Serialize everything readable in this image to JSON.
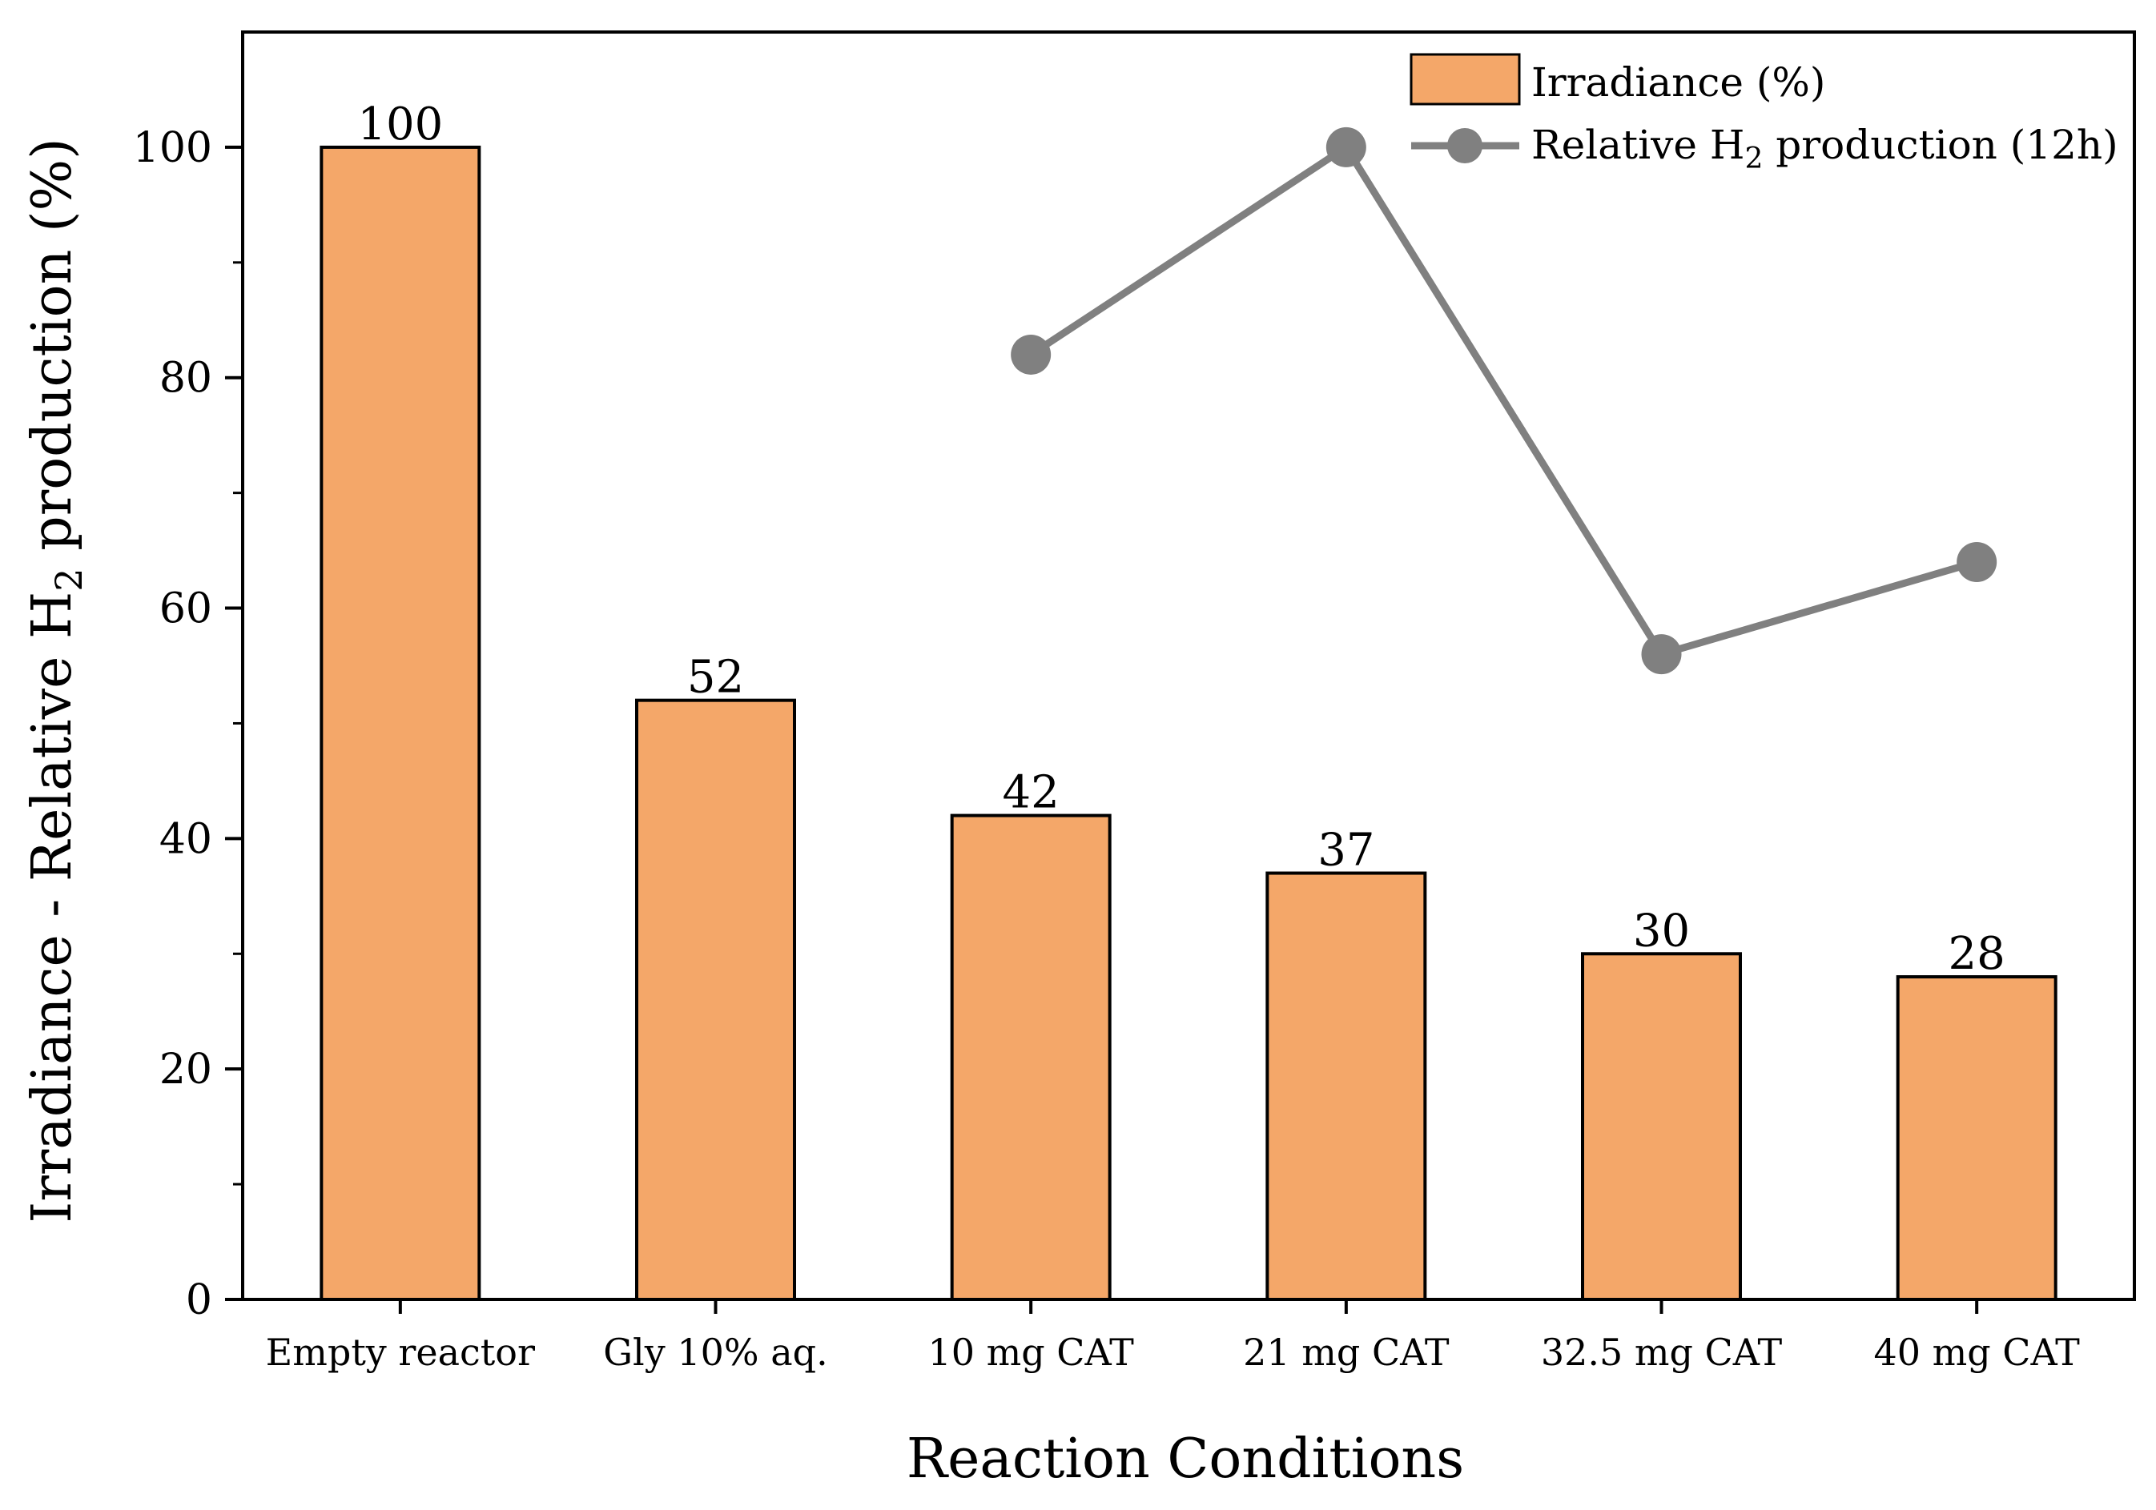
{
  "chart_data": {
    "type": "bar",
    "categories": [
      "Empty reactor",
      "Gly 10% aq.",
      "10 mg CAT",
      "21 mg CAT",
      "32.5 mg CAT",
      "40 mg CAT"
    ],
    "series": [
      {
        "name": "Irradiance (%)",
        "type": "bar",
        "color": "#F4A769",
        "values": [
          100,
          52,
          42,
          37,
          30,
          28
        ],
        "data_labels": [
          "100",
          "52",
          "42",
          "37",
          "30",
          "28"
        ]
      },
      {
        "name": "Relative H2 production (12h)",
        "type": "line",
        "color": "#808080",
        "values": [
          null,
          null,
          82,
          100,
          56,
          64
        ]
      }
    ],
    "xlabel": "Reaction Conditions",
    "ylabel": "Irradiance - Relative H2 production (%)",
    "ylim": [
      0,
      110
    ],
    "yticks": [
      0,
      20,
      40,
      60,
      80,
      100
    ],
    "legend": {
      "position": "top-right",
      "bar_label": "Irradiance (%)",
      "line_label_prefix": "Relative H",
      "line_label_sub": "2",
      "line_label_suffix": " production (12h)"
    },
    "ylabel_parts": {
      "prefix": "Irradiance - Relative H",
      "sub": "2",
      "suffix": " production (%)"
    }
  }
}
